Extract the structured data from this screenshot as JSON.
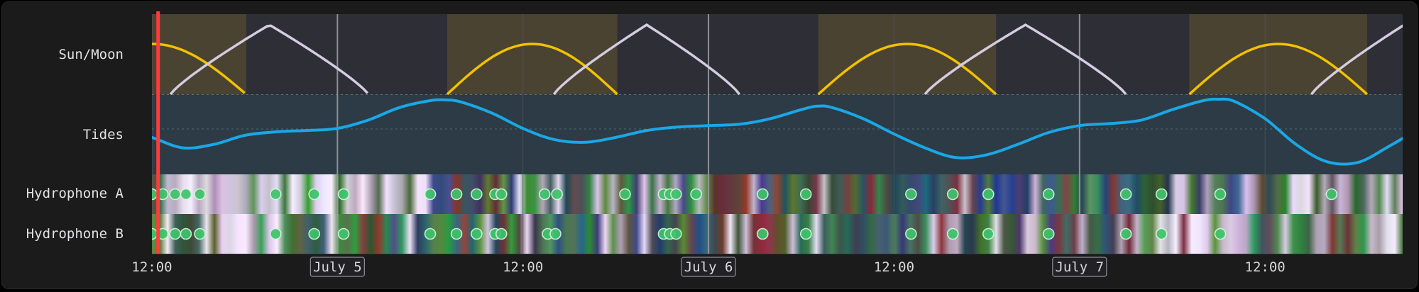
{
  "rows": [
    {
      "key": "sunmoon",
      "label": "Sun/Moon"
    },
    {
      "key": "tides",
      "label": "Tides"
    },
    {
      "key": "hydroA",
      "label": "Hydrophone A"
    },
    {
      "key": "hydroB",
      "label": "Hydrophone B"
    }
  ],
  "colors": {
    "frame_bg": "#1b1b1c",
    "night_band": "#2e2e36",
    "day_band": "#4a4332",
    "sun_curve": "#f2c200",
    "moon_curve": "#d4cce0",
    "tide_panel": "#2c3b45",
    "tide_curve": "#1aa7e6",
    "cursor": "#ff3b3b",
    "detection": "#3ec46a"
  },
  "chart_data": {
    "type": "timeline",
    "x_unit": "hours since July 4 12:00",
    "xlim": [
      0,
      80.9
    ],
    "ticks": [
      {
        "x": 0,
        "label": "12:00",
        "boxed": false
      },
      {
        "x": 12,
        "label": "July 5",
        "boxed": true
      },
      {
        "x": 24,
        "label": "12:00",
        "boxed": false
      },
      {
        "x": 36,
        "label": "July 6",
        "boxed": true
      },
      {
        "x": 48,
        "label": "12:00",
        "boxed": false
      },
      {
        "x": 60,
        "label": "July 7",
        "boxed": true
      },
      {
        "x": 72,
        "label": "12:00",
        "boxed": false
      }
    ],
    "cursor_x": 0.4,
    "day_periods": [
      [
        -0.6,
        6.1
      ],
      [
        19.1,
        30.1
      ],
      [
        43.1,
        54.6
      ],
      [
        67.1,
        78.6
      ]
    ],
    "sun_arcs": [
      [
        -6,
        6.1
      ],
      [
        19.1,
        30.1
      ],
      [
        43.1,
        54.6
      ],
      [
        67.1,
        78.6
      ]
    ],
    "moon_arcs": [
      [
        1.2,
        14.0
      ],
      [
        26.0,
        38.0
      ],
      [
        50.0,
        63.0
      ],
      [
        75.0,
        87.0
      ]
    ],
    "tides": {
      "x": [
        -1,
        0,
        2,
        4,
        6,
        8,
        10,
        12,
        14,
        16,
        18,
        19,
        20,
        22,
        24,
        26,
        28,
        30,
        32,
        34,
        36,
        38,
        40,
        42,
        43,
        44,
        46,
        48,
        50,
        52,
        54,
        56,
        58,
        60,
        62,
        64,
        66,
        68,
        69,
        70,
        72,
        74,
        76,
        78,
        80,
        81
      ],
      "y": [
        0.5,
        0.45,
        0.3,
        0.35,
        0.48,
        0.53,
        0.55,
        0.58,
        0.7,
        0.88,
        0.98,
        0.99,
        0.96,
        0.8,
        0.58,
        0.42,
        0.38,
        0.45,
        0.55,
        0.6,
        0.62,
        0.64,
        0.72,
        0.85,
        0.9,
        0.88,
        0.72,
        0.5,
        0.3,
        0.16,
        0.2,
        0.35,
        0.52,
        0.62,
        0.65,
        0.7,
        0.85,
        0.98,
        1.0,
        0.97,
        0.72,
        0.35,
        0.1,
        0.09,
        0.32,
        0.45
      ]
    },
    "detections_a": [
      0.0,
      0.7,
      1.5,
      2.2,
      3.1,
      8.0,
      10.5,
      12.4,
      18.0,
      19.7,
      21.0,
      22.2,
      22.6,
      25.4,
      26.2,
      30.6,
      33.1,
      33.5,
      33.9,
      35.2,
      39.5,
      42.3,
      49.1,
      51.8,
      54.1,
      58.0,
      63.0,
      65.3,
      69.1,
      76.3
    ],
    "detections_b": [
      0.0,
      0.7,
      1.5,
      2.2,
      3.1,
      8.0,
      10.5,
      12.4,
      18.0,
      19.7,
      21.0,
      22.2,
      22.6,
      25.6,
      26.1,
      33.1,
      33.5,
      33.9,
      39.5,
      42.3,
      49.1,
      51.8,
      54.1,
      58.0,
      63.0,
      65.3,
      69.1
    ]
  }
}
